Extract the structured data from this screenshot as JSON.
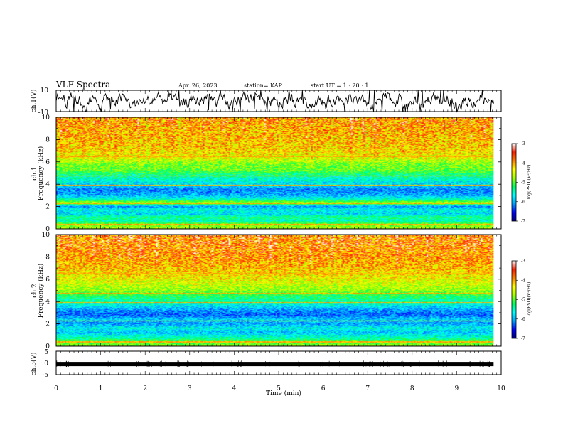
{
  "header": {
    "title": "VLF Spectra",
    "date": "Apr. 26, 2023",
    "station": "station= KAP",
    "start": "start  UT =  1 : 20 : 1"
  },
  "chart_data": [
    {
      "type": "line",
      "panel": "ch1-waveform",
      "ylabel": "ch.1(V)",
      "ylim": [
        -10,
        10
      ],
      "yticks": [
        "10",
        "-10"
      ],
      "xlim": [
        0,
        10
      ],
      "x_end": 9.83,
      "description_color": "#000000"
    },
    {
      "type": "heatmap",
      "panel": "ch1-spectrogram",
      "ylabel_lines": [
        "ch.1",
        "Frequency (kHz)"
      ],
      "ylim": [
        0,
        10
      ],
      "yticks": [
        "0",
        "2",
        "4",
        "6",
        "8",
        "10"
      ],
      "xlim": [
        0,
        10
      ],
      "x_end": 9.83,
      "colorbar": {
        "label": "log(PSD)(V²/Hz)",
        "range": [
          -7,
          -3
        ],
        "ticks": [
          "-3",
          "-4",
          "-5",
          "-6",
          "-7"
        ],
        "colors": [
          "#000080",
          "#0000ff",
          "#00a0ff",
          "#00ffff",
          "#00ff60",
          "#a0ff00",
          "#ffff00",
          "#ff8000",
          "#ff2000",
          "#ffffff"
        ]
      },
      "levels_by_frequency_kHz": [
        [
          0.0,
          -4.3
        ],
        [
          0.4,
          -4.6
        ],
        [
          0.7,
          -5.3
        ],
        [
          1.0,
          -5.0
        ],
        [
          1.3,
          -5.6
        ],
        [
          1.7,
          -5.4
        ],
        [
          2.0,
          -5.9
        ],
        [
          2.3,
          -4.2
        ],
        [
          2.6,
          -5.2
        ],
        [
          3.0,
          -5.8
        ],
        [
          3.5,
          -6.0
        ],
        [
          3.9,
          -5.6
        ],
        [
          4.3,
          -5.4
        ],
        [
          4.8,
          -5.1
        ],
        [
          5.3,
          -4.6
        ],
        [
          5.8,
          -4.5
        ],
        [
          6.3,
          -4.1
        ],
        [
          7.0,
          -3.8
        ],
        [
          8.0,
          -3.7
        ],
        [
          9.0,
          -3.6
        ],
        [
          10.0,
          -3.5
        ]
      ]
    },
    {
      "type": "heatmap",
      "panel": "ch2-spectrogram",
      "ylabel_lines": [
        "ch.2",
        "Frequency (kHz)"
      ],
      "ylim": [
        0,
        10
      ],
      "yticks": [
        "0",
        "2",
        "4",
        "6",
        "8",
        "10"
      ],
      "xlim": [
        0,
        10
      ],
      "x_end": 9.83,
      "colorbar": {
        "label": "log(PSD)(V²/Hz)",
        "range": [
          -7,
          -3
        ],
        "ticks": [
          "-3",
          "-4",
          "-5",
          "-6",
          "-7"
        ],
        "colors": [
          "#000080",
          "#0000ff",
          "#00a0ff",
          "#00ffff",
          "#00ff60",
          "#a0ff00",
          "#ffff00",
          "#ff8000",
          "#ff2000",
          "#ffffff"
        ]
      },
      "levels_by_frequency_kHz": [
        [
          0.0,
          -4.4
        ],
        [
          0.4,
          -4.8
        ],
        [
          0.8,
          -5.3
        ],
        [
          1.2,
          -5.7
        ],
        [
          1.6,
          -5.4
        ],
        [
          2.0,
          -5.9
        ],
        [
          2.3,
          -5.6
        ],
        [
          2.8,
          -6.1
        ],
        [
          3.2,
          -5.9
        ],
        [
          3.6,
          -5.5
        ],
        [
          4.0,
          -5.2
        ],
        [
          4.5,
          -4.9
        ],
        [
          5.0,
          -4.4
        ],
        [
          6.0,
          -4.0
        ],
        [
          7.0,
          -3.7
        ],
        [
          8.0,
          -3.5
        ],
        [
          9.0,
          -3.4
        ],
        [
          10.0,
          -3.4
        ]
      ]
    },
    {
      "type": "line",
      "panel": "ch3-waveform",
      "ylabel": "ch.3(V)",
      "ylim": [
        -5,
        5
      ],
      "yticks": [
        "5",
        "0",
        "-5"
      ],
      "xlim": [
        0,
        10
      ],
      "x_end": 9.83,
      "xlabel": "Time (min)",
      "xticks": [
        "0",
        "1",
        "2",
        "3",
        "4",
        "5",
        "6",
        "7",
        "8",
        "9",
        "10"
      ],
      "baseline_V": -0.5
    }
  ]
}
